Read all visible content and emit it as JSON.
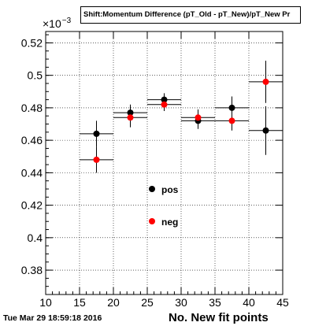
{
  "timestamp": "Tue Mar 29 18:59:18 2016",
  "chart_data": {
    "type": "scatter",
    "title": "Shift:Momentum Difference (pT_Old - pT_New)/pT_New Pr",
    "xlabel": "No. New fit points",
    "ylabel": "",
    "y_exponent_base": "×10",
    "y_exponent_power": "−3",
    "xlim": [
      10,
      45
    ],
    "ylim": [
      0.365,
      0.527
    ],
    "x_ticks": [
      "10",
      "15",
      "20",
      "25",
      "30",
      "35",
      "40",
      "45"
    ],
    "y_ticks": [
      "0.38",
      "0.4",
      "0.42",
      "0.44",
      "0.46",
      "0.48",
      "0.5",
      "0.52"
    ],
    "grid": true,
    "legend_placement": "center",
    "series": [
      {
        "name": "pos",
        "color": "#000000",
        "points": [
          {
            "x": 17.5,
            "y": 0.464,
            "xerr": 2.5,
            "yerr": 0.008
          },
          {
            "x": 22.5,
            "y": 0.477,
            "xerr": 2.5,
            "yerr": 0.005
          },
          {
            "x": 27.5,
            "y": 0.485,
            "xerr": 2.5,
            "yerr": 0.004
          },
          {
            "x": 32.5,
            "y": 0.472,
            "xerr": 2.5,
            "yerr": 0.005
          },
          {
            "x": 37.5,
            "y": 0.48,
            "xerr": 2.5,
            "yerr": 0.007
          },
          {
            "x": 42.5,
            "y": 0.466,
            "xerr": 2.5,
            "yerr": 0.015
          }
        ]
      },
      {
        "name": "neg",
        "color": "#ff0000",
        "points": [
          {
            "x": 17.5,
            "y": 0.448,
            "xerr": 2.5,
            "yerr": 0.008
          },
          {
            "x": 22.5,
            "y": 0.474,
            "xerr": 2.5,
            "yerr": 0.006
          },
          {
            "x": 27.5,
            "y": 0.482,
            "xerr": 2.5,
            "yerr": 0.004
          },
          {
            "x": 32.5,
            "y": 0.474,
            "xerr": 2.5,
            "yerr": 0.005
          },
          {
            "x": 37.5,
            "y": 0.472,
            "xerr": 2.5,
            "yerr": 0.006
          },
          {
            "x": 42.5,
            "y": 0.496,
            "xerr": 2.5,
            "yerr": 0.013
          }
        ]
      }
    ]
  }
}
